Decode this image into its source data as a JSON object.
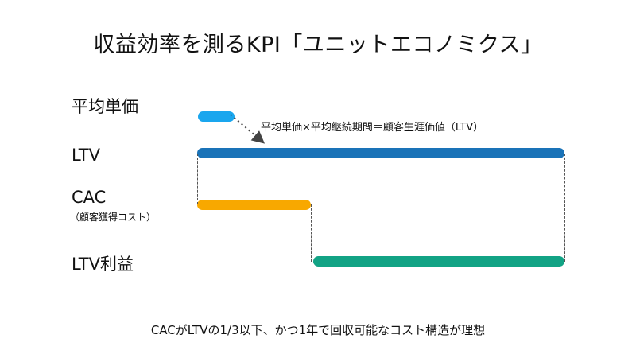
{
  "title": "収益効率を測るKPI「ユニットエコノミクス」",
  "rows": {
    "avg_price": {
      "label": "平均単価",
      "color": "#1aa6ee"
    },
    "ltv": {
      "label": "LTV",
      "color": "#1a73b8"
    },
    "cac": {
      "label": "CAC",
      "sublabel": "（顧客獲得コスト）",
      "color": "#f8a800"
    },
    "ltv_profit": {
      "label": "LTV利益",
      "color": "#12a385"
    }
  },
  "formula": "平均単価×平均継続期間＝顧客生涯価値（LTV）",
  "footer": "CACがLTVの1/3以下、かつ1年で回収可能なコスト構造が理想"
}
